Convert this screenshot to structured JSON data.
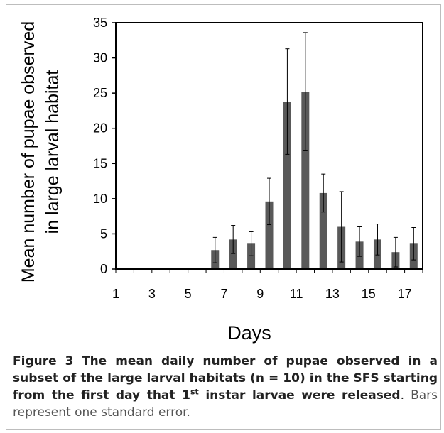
{
  "chart_data": {
    "type": "bar",
    "categories": [
      "1",
      "2",
      "3",
      "4",
      "5",
      "6",
      "7",
      "8",
      "9",
      "10",
      "11",
      "12",
      "13",
      "14",
      "15",
      "16",
      "17"
    ],
    "tick_labels": [
      "1",
      "3",
      "5",
      "7",
      "9",
      "11",
      "13",
      "15",
      "17"
    ],
    "values": [
      0,
      0,
      0,
      0,
      0,
      2.7,
      4.2,
      3.6,
      9.6,
      23.8,
      25.2,
      10.8,
      6.0,
      3.9,
      4.2,
      2.4,
      3.6
    ],
    "errors": [
      0,
      0,
      0,
      0,
      0,
      1.8,
      2.0,
      1.7,
      3.3,
      7.5,
      8.4,
      2.7,
      5.0,
      2.1,
      2.2,
      2.1,
      2.3
    ],
    "xlabel": "Days",
    "ylabel_lines": [
      "Mean number of pupae observed",
      "in large larval habitat"
    ],
    "ylim": [
      0,
      35
    ],
    "yticks": [
      0,
      5,
      10,
      15,
      20,
      25,
      30,
      35
    ],
    "grid": false,
    "bar_color": "#595959"
  },
  "caption": {
    "figure_label": "Figure 3",
    "bold_text_pre": "The mean daily number of pupae observed in a subset of the large larval habitats (n = 10) in the SFS starting from the first day that 1",
    "superscript": "st",
    "bold_text_post": " instar larvae were released",
    "period": ".",
    "rest": " Bars represent one standard error."
  }
}
